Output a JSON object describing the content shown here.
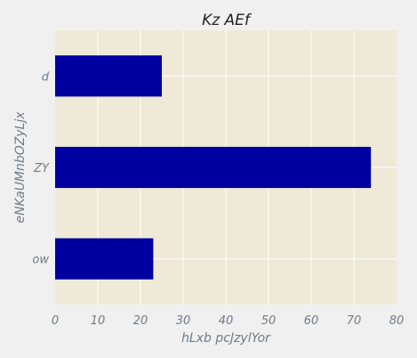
{
  "chart_data": {
    "type": "bar",
    "orientation": "horizontal",
    "title": "Kz AEf",
    "xlabel": "hLxb pcJzylYor",
    "ylabel": "eNKaUMnbOZyLjx",
    "categories": [
      "ow",
      "ZY",
      "d"
    ],
    "values": [
      23,
      74,
      25
    ],
    "xlim": [
      0,
      80
    ],
    "xticks": [
      0,
      10,
      20,
      30,
      40,
      50,
      60,
      70,
      80
    ],
    "grid": true,
    "bar_color": "#0000a0",
    "plot_background": "#efe9d8",
    "page_background": "#f0f0f0",
    "grid_color": "#ffffff"
  }
}
